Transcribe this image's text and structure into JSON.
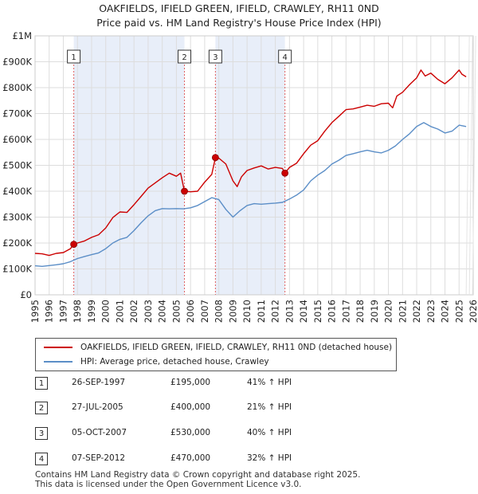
{
  "colors": {
    "property": "#cc0000",
    "hpi": "#5b8ec7",
    "shade": "#e8eef9",
    "grid": "#dddddd",
    "marker_line": "#e06060"
  },
  "header": {
    "title_line1": "OAKFIELDS, IFIELD GREEN, IFIELD, CRAWLEY, RH11 0ND",
    "title_line2": "Price paid vs. HM Land Registry's House Price Index (HPI)"
  },
  "legend": {
    "property_label": "OAKFIELDS, IFIELD GREEN, IFIELD, CRAWLEY, RH11 0ND (detached house)",
    "hpi_label": "HPI: Average price, detached house, Crawley"
  },
  "transactions": [
    {
      "num": "1",
      "date": "26-SEP-1997",
      "price": "£195,000",
      "hpi": "41% ↑ HPI"
    },
    {
      "num": "2",
      "date": "27-JUL-2005",
      "price": "£400,000",
      "hpi": "21% ↑ HPI"
    },
    {
      "num": "3",
      "date": "05-OCT-2007",
      "price": "£530,000",
      "hpi": "40% ↑ HPI"
    },
    {
      "num": "4",
      "date": "07-SEP-2012",
      "price": "£470,000",
      "hpi": "32% ↑ HPI"
    }
  ],
  "footer": {
    "line1": "Contains HM Land Registry data © Crown copyright and database right 2025.",
    "line2": "This data is licensed under the Open Government Licence v3.0."
  },
  "chart_data": {
    "type": "line",
    "title": "OAKFIELDS, IFIELD GREEN, IFIELD, CRAWLEY, RH11 0ND",
    "subtitle": "Price paid vs. HM Land Registry's House Price Index (HPI)",
    "xlabel": "",
    "ylabel": "",
    "xlim": [
      1995,
      2026
    ],
    "ylim": [
      0,
      1000000
    ],
    "x_ticks": [
      1995,
      1996,
      1997,
      1998,
      1999,
      2000,
      2001,
      2002,
      2003,
      2004,
      2005,
      2006,
      2007,
      2008,
      2009,
      2010,
      2011,
      2012,
      2013,
      2014,
      2015,
      2016,
      2017,
      2018,
      2019,
      2020,
      2021,
      2022,
      2023,
      2024,
      2025,
      2026
    ],
    "y_ticks": [
      {
        "value": 0,
        "label": "£0"
      },
      {
        "value": 100000,
        "label": "£100K"
      },
      {
        "value": 200000,
        "label": "£200K"
      },
      {
        "value": 300000,
        "label": "£300K"
      },
      {
        "value": 400000,
        "label": "£400K"
      },
      {
        "value": 500000,
        "label": "£500K"
      },
      {
        "value": 600000,
        "label": "£600K"
      },
      {
        "value": 700000,
        "label": "£700K"
      },
      {
        "value": 800000,
        "label": "£800K"
      },
      {
        "value": 900000,
        "label": "£900K"
      },
      {
        "value": 1000000,
        "label": "£1M"
      }
    ],
    "grid": true,
    "legend_position": "below",
    "shaded_ranges": [
      [
        1997.74,
        2005.57
      ],
      [
        2007.76,
        2012.68
      ]
    ],
    "sales": [
      {
        "label": "1",
        "x": 1997.74,
        "y": 195000
      },
      {
        "label": "2",
        "x": 2005.57,
        "y": 400000
      },
      {
        "label": "3",
        "x": 2007.76,
        "y": 530000
      },
      {
        "label": "4",
        "x": 2012.68,
        "y": 470000
      }
    ],
    "series": [
      {
        "name": "OAKFIELDS, IFIELD GREEN, IFIELD, CRAWLEY, RH11 0ND (detached house)",
        "x": [
          1995,
          1995.5,
          1996,
          1996.5,
          1997,
          1997.5,
          1997.74,
          1998,
          1998.5,
          1999,
          1999.5,
          2000,
          2000.5,
          2001,
          2001.5,
          2002,
          2002.5,
          2003,
          2003.5,
          2004,
          2004.5,
          2005,
          2005.3,
          2005.57,
          2006,
          2006.5,
          2007,
          2007.5,
          2007.76,
          2008,
          2008.5,
          2009,
          2009.3,
          2009.6,
          2010,
          2010.5,
          2011,
          2011.5,
          2012,
          2012.5,
          2012.68,
          2013,
          2013.5,
          2014,
          2014.5,
          2015,
          2015.5,
          2016,
          2016.5,
          2017,
          2017.5,
          2018,
          2018.5,
          2019,
          2019.5,
          2020,
          2020.3,
          2020.6,
          2021,
          2021.5,
          2022,
          2022.3,
          2022.6,
          2023,
          2023.5,
          2024,
          2024.5,
          2025,
          2025.2,
          2025.5
        ],
        "values": [
          160000,
          158000,
          152000,
          160000,
          163000,
          178000,
          195000,
          200000,
          208000,
          222000,
          232000,
          258000,
          298000,
          320000,
          318000,
          348000,
          380000,
          412000,
          432000,
          452000,
          470000,
          458000,
          470000,
          400000,
          398000,
          400000,
          435000,
          465000,
          530000,
          528000,
          505000,
          440000,
          418000,
          455000,
          480000,
          490000,
          498000,
          486000,
          492000,
          488000,
          470000,
          492000,
          508000,
          545000,
          578000,
          595000,
          632000,
          665000,
          690000,
          715000,
          718000,
          725000,
          732000,
          728000,
          738000,
          740000,
          722000,
          768000,
          782000,
          812000,
          838000,
          868000,
          845000,
          856000,
          832000,
          815000,
          838000,
          868000,
          852000,
          842000
        ]
      },
      {
        "name": "HPI: Average price, detached house, Crawley",
        "x": [
          1995,
          1995.5,
          1996,
          1996.5,
          1997,
          1997.5,
          1998,
          1998.5,
          1999,
          1999.5,
          2000,
          2000.5,
          2001,
          2001.5,
          2002,
          2002.5,
          2003,
          2003.5,
          2004,
          2004.5,
          2005,
          2005.5,
          2006,
          2006.5,
          2007,
          2007.5,
          2008,
          2008.5,
          2009,
          2009.5,
          2010,
          2010.5,
          2011,
          2011.5,
          2012,
          2012.5,
          2013,
          2013.5,
          2014,
          2014.5,
          2015,
          2015.5,
          2016,
          2016.5,
          2017,
          2017.5,
          2018,
          2018.5,
          2019,
          2019.5,
          2020,
          2020.5,
          2021,
          2021.5,
          2022,
          2022.5,
          2023,
          2023.5,
          2024,
          2024.5,
          2025,
          2025.5
        ],
        "values": [
          112000,
          110000,
          113000,
          116000,
          120000,
          128000,
          140000,
          148000,
          155000,
          162000,
          178000,
          200000,
          214000,
          222000,
          248000,
          278000,
          305000,
          325000,
          333000,
          332000,
          333000,
          332000,
          336000,
          345000,
          360000,
          375000,
          368000,
          330000,
          300000,
          325000,
          345000,
          352000,
          350000,
          352000,
          354000,
          357000,
          370000,
          385000,
          405000,
          440000,
          462000,
          480000,
          505000,
          520000,
          538000,
          545000,
          552000,
          558000,
          552000,
          548000,
          558000,
          575000,
          600000,
          622000,
          650000,
          665000,
          650000,
          640000,
          625000,
          632000,
          655000,
          650000
        ]
      }
    ]
  }
}
